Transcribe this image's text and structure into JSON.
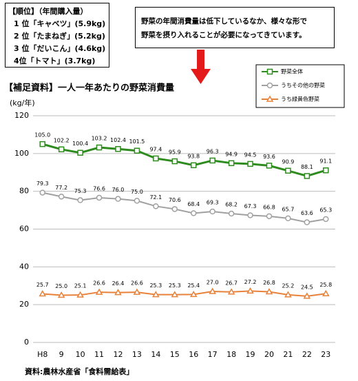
{
  "ranking": {
    "title": "【順位】（年間購入量）",
    "items": [
      "1 位「キャベツ」(5.9kg)",
      "2 位「たまねぎ」(5.2kg)",
      "3 位「だいこん」(4.6kg)",
      "4位「トマト」(3.7kg)"
    ]
  },
  "note": [
    "野菜の年間消費量は低下しているなか、様々な形で",
    "野菜を摂り入れることが必要になってきています。"
  ],
  "chart_data": {
    "type": "line",
    "title": "【補足資料】一人一年あたりの野菜消費量",
    "ylabel": "(kg/年)",
    "source": "資料:農林水産省「食料需給表」",
    "categories": [
      "H8",
      "9",
      "10",
      "11",
      "12",
      "13",
      "14",
      "15",
      "16",
      "17",
      "18",
      "19",
      "20",
      "21",
      "22",
      "23"
    ],
    "ylim": [
      0,
      120
    ],
    "yticks": [
      0,
      20,
      40,
      60,
      80,
      100,
      120
    ],
    "grid": true,
    "series": [
      {
        "name": "野菜全体",
        "color": "#2e8b1e",
        "marker": "square",
        "values": [
          105.0,
          102.2,
          100.4,
          103.2,
          102.4,
          101.5,
          97.4,
          95.9,
          93.8,
          96.3,
          94.9,
          94.5,
          93.6,
          90.9,
          88.1,
          91.1
        ],
        "value_labels": [
          "105.0",
          "102.2",
          "100.4",
          "103.2",
          "102.4",
          "101.5",
          "97.4",
          "95.9",
          "93.8",
          "96.3",
          "94.9",
          "94.5",
          "93.6",
          "90.9",
          "88.1",
          "91.1"
        ]
      },
      {
        "name": "うちその他の野菜",
        "color": "#a0a0a0",
        "marker": "circle",
        "values": [
          79.3,
          77.2,
          75.3,
          76.6,
          76.0,
          75.0,
          72.1,
          70.6,
          68.4,
          69.3,
          68.2,
          67.3,
          66.8,
          65.7,
          63.6,
          65.3
        ],
        "value_labels": [
          "79.3",
          "77.2",
          "75.3",
          "76.6",
          "76.0",
          "75.0",
          "72.1",
          "70.6",
          "68.4",
          "69.3",
          "68.2",
          "67.3",
          "66.8",
          "65.7",
          "63.6",
          "65.3"
        ]
      },
      {
        "name": "うち緑黄色野菜",
        "color": "#e8823a",
        "marker": "triangle",
        "values": [
          25.7,
          25.0,
          25.1,
          26.6,
          26.4,
          26.6,
          25.3,
          25.3,
          25.4,
          27.0,
          26.7,
          27.2,
          26.8,
          25.2,
          24.5,
          25.8
        ],
        "value_labels": [
          "25.7",
          "25.0",
          "25.1",
          "26.6",
          "26.4",
          "26.6",
          "25.3",
          "25.3",
          "25.4",
          "27.0",
          "26.7",
          "27.2",
          "26.8",
          "25.2",
          "24.5",
          "25.8"
        ]
      }
    ]
  }
}
